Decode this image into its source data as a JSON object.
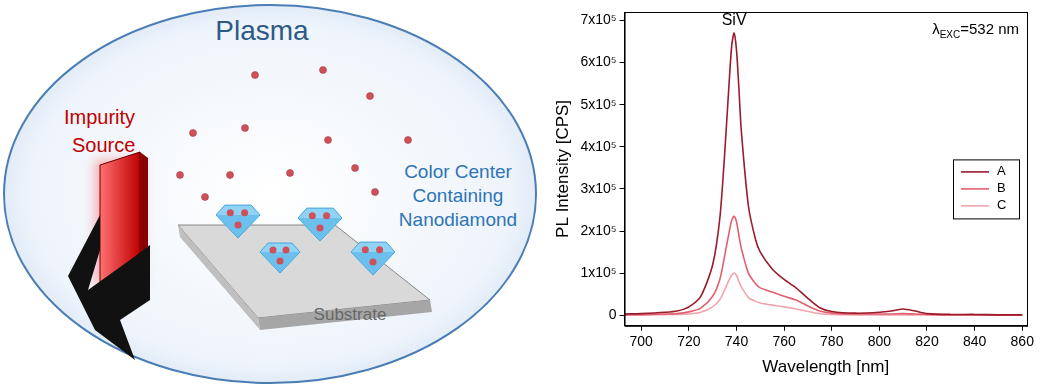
{
  "diagram": {
    "title": "Plasma",
    "source_label": [
      "Impurity",
      "Source"
    ],
    "particle_label": [
      "Color Center",
      "Containing",
      "Nanodiamond"
    ],
    "substrate_label": "Substrate"
  },
  "chart_data": {
    "type": "line",
    "peak_label": "SiV",
    "annotation": {
      "symbol": "λ",
      "subscript": "EXC",
      "text": "=532 nm"
    },
    "x_label": "Wavelength [nm]",
    "y_label": "PL Intensity [CPS]",
    "x": [
      693,
      700,
      710,
      715,
      720,
      725,
      730,
      733,
      735,
      737,
      738,
      739,
      740,
      741,
      742,
      745,
      748,
      750,
      755,
      760,
      765,
      770,
      775,
      780,
      790,
      800,
      805,
      810,
      815,
      820,
      830,
      840,
      850,
      860
    ],
    "series": [
      {
        "name": "A",
        "color": "#9b1b2a",
        "values": [
          3000,
          4000,
          7000,
          10000,
          20000,
          45000,
          120000,
          230000,
          380000,
          560000,
          640000,
          670000,
          630000,
          540000,
          440000,
          260000,
          180000,
          150000,
          110000,
          85000,
          65000,
          40000,
          18000,
          9000,
          5000,
          7000,
          10000,
          15000,
          10000,
          4000,
          2000,
          2000,
          1000,
          1000
        ]
      },
      {
        "name": "B",
        "color": "#e0606e",
        "values": [
          1000,
          1500,
          3000,
          4000,
          8000,
          17000,
          45000,
          85000,
          140000,
          200000,
          225000,
          235000,
          222000,
          190000,
          160000,
          100000,
          75000,
          65000,
          55000,
          45000,
          36000,
          22000,
          10000,
          5000,
          3000,
          3000,
          3000,
          4000,
          3000,
          2000,
          1000,
          1000,
          0,
          0
        ]
      },
      {
        "name": "C",
        "color": "#f2a5ad",
        "values": [
          500,
          800,
          1500,
          2000,
          3000,
          7000,
          20000,
          37000,
          60000,
          85000,
          95000,
          100000,
          95000,
          80000,
          68000,
          42000,
          33000,
          29000,
          24000,
          20000,
          15000,
          9000,
          4000,
          2000,
          1000,
          1000,
          1000,
          1000,
          1000,
          500,
          500,
          0,
          0,
          0
        ]
      }
    ],
    "xlim": [
      693,
      862
    ],
    "xticks": [
      700,
      720,
      740,
      760,
      780,
      800,
      820,
      840,
      860
    ],
    "ylim": [
      -25000,
      720000
    ],
    "yticks": [
      0,
      {
        "value": 100000,
        "label": "1x10⁵"
      },
      {
        "value": 200000,
        "label": "2x10⁵"
      },
      {
        "value": 300000,
        "label": "3x10⁵"
      },
      {
        "value": 400000,
        "label": "4x10⁵"
      },
      {
        "value": 500000,
        "label": "5x10⁵"
      },
      {
        "value": 600000,
        "label": "6x10⁵"
      },
      {
        "value": 700000,
        "label": "7x10⁵"
      }
    ],
    "grid": false,
    "legend": "right"
  }
}
